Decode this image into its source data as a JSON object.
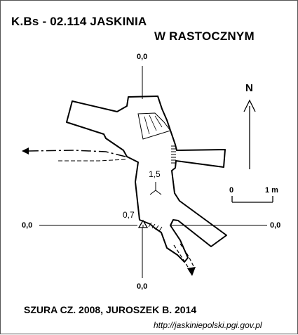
{
  "title": {
    "line1": "K.Bs - 02.114  JASKINIA",
    "line2": "W RASTOCZNYM"
  },
  "reference_levels": {
    "top": "0,0",
    "left": "0,0",
    "right": "0,0",
    "bottom": "0,0"
  },
  "depth_labels": {
    "inner_point": "1,5",
    "entrance_point": "0,7"
  },
  "north_arrow": {
    "label": "N"
  },
  "scale_bar": {
    "start_label": "0",
    "end_label": "1 m"
  },
  "credits": "SZURA CZ. 2008, JUROSZEK B. 2014",
  "source_url": "http://jaskiniepolski.pgi.gov.pl",
  "colors": {
    "ink": "#000000",
    "background": "#ffffff"
  }
}
